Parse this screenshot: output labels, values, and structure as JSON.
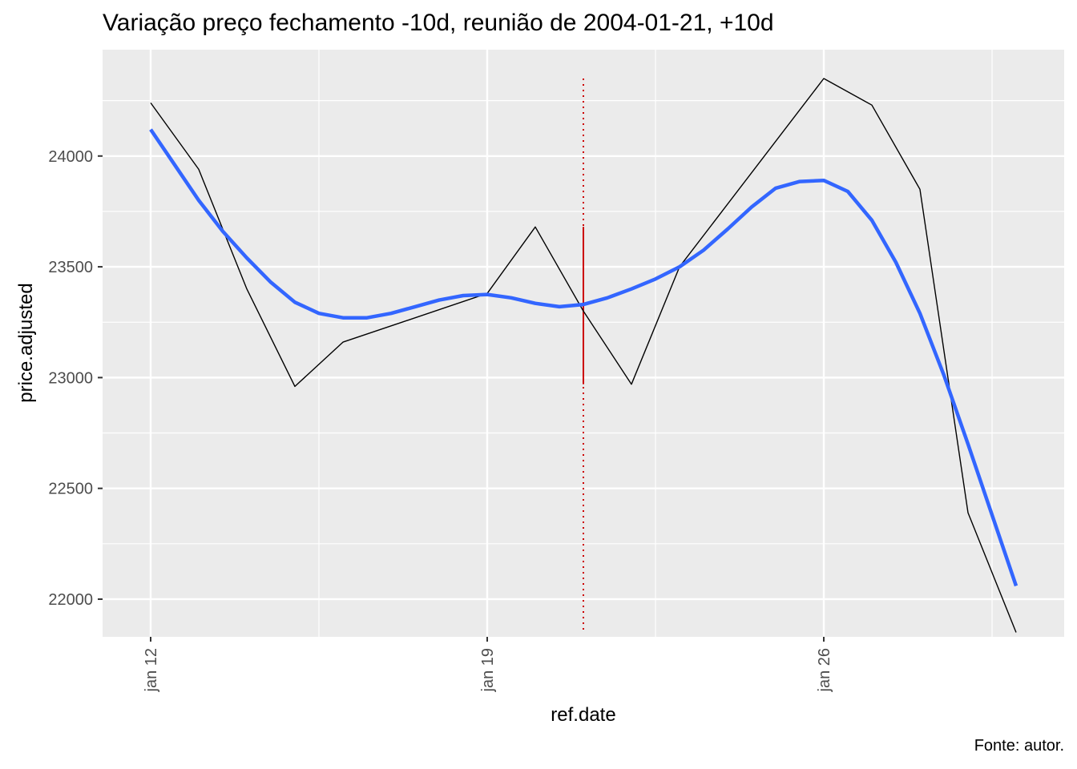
{
  "chart_data": {
    "type": "line",
    "title": "Variação preço fechamento -10d, reunião de 2004-01-21, +10d",
    "xlabel": "ref.date",
    "ylabel": "price.adjusted",
    "caption": "Fonte: autor.",
    "x_ticks": [
      {
        "date": "2004-01-12",
        "label": "jan 12"
      },
      {
        "date": "2004-01-19",
        "label": "jan 19"
      },
      {
        "date": "2004-01-26",
        "label": "jan 26"
      }
    ],
    "x_minor_dates": [
      "2004-01-15.5",
      "2004-01-22.5",
      "2004-01-29.5"
    ],
    "xlim": [
      "2004-01-11",
      "2004-01-31"
    ],
    "y_ticks": [
      22000,
      22500,
      23000,
      23500,
      24000
    ],
    "y_minor": [
      22250,
      22750,
      23250,
      23750,
      24250
    ],
    "ylim": [
      21830,
      24480
    ],
    "grid": true,
    "series": [
      {
        "role": "price",
        "color": "#000000",
        "points": [
          [
            "2004-01-12",
            24240
          ],
          [
            "2004-01-13",
            23940
          ],
          [
            "2004-01-14",
            23400
          ],
          [
            "2004-01-15",
            22960
          ],
          [
            "2004-01-16",
            23160
          ],
          [
            "2004-01-19",
            23380
          ],
          [
            "2004-01-20",
            23680
          ],
          [
            "2004-01-21",
            23300
          ],
          [
            "2004-01-22",
            22970
          ],
          [
            "2004-01-23",
            23500
          ],
          [
            "2004-01-26",
            24350
          ],
          [
            "2004-01-27",
            24230
          ],
          [
            "2004-01-28",
            23850
          ],
          [
            "2004-01-29",
            22390
          ],
          [
            "2004-01-30",
            21850
          ]
        ]
      },
      {
        "role": "smooth",
        "color": "#3366FF",
        "points": [
          [
            "2004-01-12",
            24120
          ],
          [
            "2004-01-12.5",
            23960
          ],
          [
            "2004-01-13",
            23800
          ],
          [
            "2004-01-13.5",
            23660
          ],
          [
            "2004-01-14",
            23540
          ],
          [
            "2004-01-14.5",
            23430
          ],
          [
            "2004-01-15",
            23340
          ],
          [
            "2004-01-15.5",
            23290
          ],
          [
            "2004-01-16",
            23270
          ],
          [
            "2004-01-16.5",
            23270
          ],
          [
            "2004-01-17",
            23290
          ],
          [
            "2004-01-17.5",
            23320
          ],
          [
            "2004-01-18",
            23350
          ],
          [
            "2004-01-18.5",
            23370
          ],
          [
            "2004-01-19",
            23375
          ],
          [
            "2004-01-19.5",
            23360
          ],
          [
            "2004-01-20",
            23335
          ],
          [
            "2004-01-20.5",
            23320
          ],
          [
            "2004-01-21",
            23330
          ],
          [
            "2004-01-21.5",
            23360
          ],
          [
            "2004-01-22",
            23400
          ],
          [
            "2004-01-22.5",
            23445
          ],
          [
            "2004-01-23",
            23500
          ],
          [
            "2004-01-23.5",
            23575
          ],
          [
            "2004-01-24",
            23670
          ],
          [
            "2004-01-24.5",
            23770
          ],
          [
            "2004-01-25",
            23855
          ],
          [
            "2004-01-25.5",
            23885
          ],
          [
            "2004-01-26",
            23890
          ],
          [
            "2004-01-26.5",
            23840
          ],
          [
            "2004-01-27",
            23710
          ],
          [
            "2004-01-27.5",
            23520
          ],
          [
            "2004-01-28",
            23290
          ],
          [
            "2004-01-28.5",
            23010
          ],
          [
            "2004-01-29",
            22700
          ],
          [
            "2004-01-29.5",
            22380
          ],
          [
            "2004-01-30",
            22060
          ]
        ]
      }
    ],
    "meeting_marker": {
      "date": "2004-01-21",
      "color": "#CC0000",
      "dotted_range": [
        21850,
        24350
      ],
      "solid_range": [
        22970,
        23680
      ]
    }
  }
}
